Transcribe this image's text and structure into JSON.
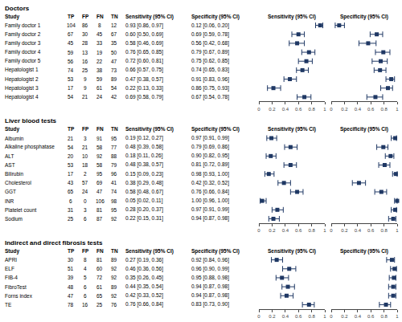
{
  "chart_data": [
    {
      "type": "forest",
      "title": "Doctors",
      "category_label": "Study",
      "categories": [
        "Family doctor 1",
        "Family doctor 2",
        "Family doctor 3",
        "Family doctor 4",
        "Family doctor 5",
        "Hepatologist 1",
        "Hepatologist 2",
        "Hepatologist 3",
        "Hepatologist 4"
      ],
      "columns": [
        {
          "name": "TP",
          "values": [
            104,
            67,
            45,
            59,
            56,
            74,
            53,
            17,
            54
          ]
        },
        {
          "name": "FP",
          "values": [
            86,
            30,
            28,
            13,
            16,
            25,
            9,
            9,
            21
          ]
        },
        {
          "name": "FN",
          "values": [
            8,
            45,
            33,
            19,
            22,
            38,
            59,
            61,
            24
          ]
        },
        {
          "name": "TN",
          "values": [
            12,
            67,
            35,
            50,
            47,
            73,
            89,
            54,
            42
          ]
        }
      ],
      "series": [
        {
          "name": "Sensitivity (95% CI)",
          "color": "#1F3864",
          "marker": "square",
          "values": [
            0.93,
            0.6,
            0.58,
            0.76,
            0.72,
            0.66,
            0.47,
            0.22,
            0.69
          ],
          "lower": [
            0.86,
            0.5,
            0.46,
            0.65,
            0.6,
            0.57,
            0.38,
            0.13,
            0.58
          ],
          "upper": [
            0.97,
            0.69,
            0.69,
            0.85,
            0.81,
            0.75,
            0.57,
            0.33,
            0.79
          ],
          "value_labels": [
            "0.93 [0.86, 0.97]",
            "0.60 [0.50, 0.69]",
            "0.58 [0.46, 0.69]",
            "0.76 [0.65, 0.85]",
            "0.72 [0.60, 0.81]",
            "0.66 [0.57, 0.75]",
            "0.47 [0.38, 0.57]",
            "0.22 [0.13, 0.33]",
            "0.69 [0.58, 0.79]"
          ]
        },
        {
          "name": "Specificity (95% CI)",
          "color": "#1F3864",
          "marker": "square",
          "values": [
            0.12,
            0.69,
            0.56,
            0.79,
            0.75,
            0.74,
            0.91,
            0.86,
            0.67
          ],
          "lower": [
            0.06,
            0.59,
            0.42,
            0.67,
            0.62,
            0.65,
            0.83,
            0.75,
            0.54
          ],
          "upper": [
            0.2,
            0.78,
            0.68,
            0.89,
            0.85,
            0.83,
            0.96,
            0.93,
            0.78
          ],
          "value_labels": [
            "0.12 [0.06, 0.20]",
            "0.69 [0.59, 0.78]",
            "0.56 [0.42, 0.68]",
            "0.79 [0.67, 0.89]",
            "0.75 [0.62, 0.85]",
            "0.74 [0.65, 0.83]",
            "0.91 [0.83, 0.96]",
            "0.86 [0.75, 0.93]",
            "0.67 [0.54, 0.78]"
          ]
        }
      ],
      "xlim": [
        0,
        1
      ],
      "xticks": [
        0,
        0.2,
        0.4,
        0.6,
        0.8,
        1
      ],
      "grid": false,
      "tick_labels": "x"
    },
    {
      "type": "forest",
      "title": "Liver blood tests",
      "category_label": "Study",
      "categories": [
        "Albumin",
        "Alkaline phosphatase",
        "ALT",
        "AST",
        "Bilirubin",
        "Cholesterol",
        "GGT",
        "INR",
        "Platelet count",
        "Sodium"
      ],
      "columns": [
        {
          "name": "TP",
          "values": [
            21,
            54,
            20,
            53,
            17,
            43,
            65,
            6,
            31,
            25
          ]
        },
        {
          "name": "FP",
          "values": [
            3,
            21,
            10,
            18,
            2,
            57,
            24,
            0,
            3,
            6
          ]
        },
        {
          "name": "FN",
          "values": [
            91,
            58,
            92,
            58,
            95,
            69,
            47,
            106,
            81,
            87
          ]
        },
        {
          "name": "TN",
          "values": [
            95,
            77,
            88,
            79,
            96,
            41,
            74,
            98,
            95,
            92
          ]
        }
      ],
      "series": [
        {
          "name": "Sensitivity (95% CI)",
          "color": "#1F3864",
          "marker": "square",
          "values": [
            0.19,
            0.48,
            0.18,
            0.48,
            0.15,
            0.38,
            0.58,
            0.05,
            0.28,
            0.22
          ],
          "lower": [
            0.12,
            0.39,
            0.11,
            0.38,
            0.09,
            0.29,
            0.48,
            0.02,
            0.2,
            0.15
          ],
          "upper": [
            0.27,
            0.58,
            0.26,
            0.57,
            0.23,
            0.48,
            0.67,
            0.11,
            0.37,
            0.31
          ],
          "value_labels": [
            "0.19 [0.12, 0.27]",
            "0.48 [0.39, 0.58]",
            "0.18 [0.11, 0.26]",
            "0.48 [0.38, 0.57]",
            "0.15 [0.09, 0.23]",
            "0.38 [0.29, 0.48]",
            "0.58 [0.48, 0.67]",
            "0.05 [0.02, 0.11]",
            "0.28 [0.20, 0.37]",
            "0.22 [0.15, 0.31]"
          ]
        },
        {
          "name": "Specificity (95% CI)",
          "color": "#1F3864",
          "marker": "square",
          "values": [
            0.97,
            0.79,
            0.9,
            0.81,
            0.98,
            0.42,
            0.76,
            1.0,
            0.97,
            0.94
          ],
          "lower": [
            0.91,
            0.69,
            0.82,
            0.72,
            0.93,
            0.32,
            0.66,
            0.96,
            0.91,
            0.87
          ],
          "upper": [
            0.99,
            0.86,
            0.95,
            0.89,
            1.0,
            0.52,
            0.84,
            1.0,
            0.99,
            0.98
          ],
          "value_labels": [
            "0.97 [0.91, 0.99]",
            "0.79 [0.69, 0.86]",
            "0.90 [0.82, 0.95]",
            "0.81 [0.72, 0.89]",
            "0.98 [0.93, 1.00]",
            "0.42 [0.32, 0.52]",
            "0.76 [0.66, 0.84]",
            "1.00 [0.96, 1.00]",
            "0.97 [0.91, 0.99]",
            "0.94 [0.87, 0.98]"
          ]
        }
      ],
      "xlim": [
        0,
        1
      ],
      "xticks": [
        0,
        0.2,
        0.4,
        0.6,
        0.8,
        1
      ],
      "grid": false,
      "tick_labels": "x"
    },
    {
      "type": "forest",
      "title": "Indirect and direct fibrosis tests",
      "category_label": "Study",
      "categories": [
        "APRI",
        "ELF",
        "FIB-4",
        "FibroTest",
        "Forns index",
        "TE"
      ],
      "columns": [
        {
          "name": "TP",
          "values": [
            30,
            51,
            39,
            48,
            47,
            78
          ]
        },
        {
          "name": "FP",
          "values": [
            8,
            4,
            5,
            6,
            6,
            16
          ]
        },
        {
          "name": "FN",
          "values": [
            81,
            60,
            72,
            61,
            65,
            25
          ]
        },
        {
          "name": "TN",
          "values": [
            89,
            92,
            92,
            89,
            92,
            76
          ]
        }
      ],
      "series": [
        {
          "name": "Sensitivity (95% CI)",
          "color": "#1F3864",
          "marker": "square",
          "values": [
            0.27,
            0.46,
            0.35,
            0.44,
            0.42,
            0.76
          ],
          "lower": [
            0.19,
            0.36,
            0.26,
            0.35,
            0.33,
            0.66
          ],
          "upper": [
            0.36,
            0.56,
            0.45,
            0.54,
            0.52,
            0.84
          ],
          "value_labels": [
            "0.27 [0.19, 0.36]",
            "0.46 [0.36, 0.56]",
            "0.35 [0.26, 0.45]",
            "0.44 [0.35, 0.54]",
            "0.42 [0.33, 0.52]",
            "0.76 [0.66, 0.84]"
          ]
        },
        {
          "name": "Specificity (95% CI)",
          "color": "#1F3864",
          "marker": "square",
          "values": [
            0.92,
            0.96,
            0.95,
            0.94,
            0.94,
            0.83
          ],
          "lower": [
            0.84,
            0.9,
            0.88,
            0.87,
            0.87,
            0.73
          ],
          "upper": [
            0.96,
            0.99,
            0.98,
            0.98,
            0.98,
            0.9
          ],
          "value_labels": [
            "0.92 [0.84, 0.96]",
            "0.96 [0.90, 0.99]",
            "0.95 [0.88, 0.98]",
            "0.94 [0.87, 0.98]",
            "0.94 [0.87, 0.98]",
            "0.83 [0.73, 0.90]"
          ]
        }
      ],
      "xlim": [
        0,
        1
      ],
      "xticks": [
        0,
        0.2,
        0.4,
        0.6,
        0.8,
        1
      ],
      "grid": false,
      "tick_labels": "x"
    }
  ]
}
